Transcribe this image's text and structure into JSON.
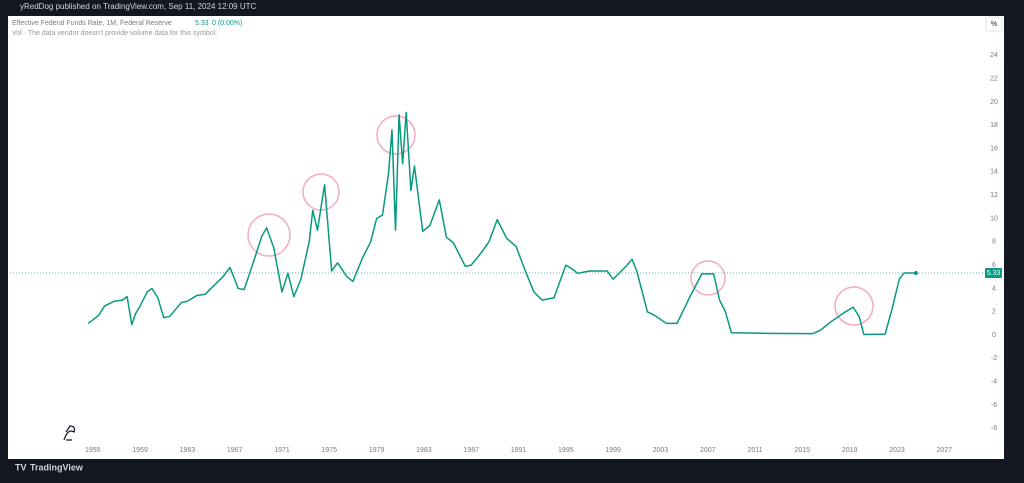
{
  "header": {
    "attribution": "yRedDog published on TradingView.com, Sep 11, 2024 12:09 UTC"
  },
  "footer": {
    "brand": "TradingView"
  },
  "chart_data": {
    "type": "line",
    "title": "Effective Federal Funds Rate, 1M, Federal Reserve",
    "last_value": 5.33,
    "change_label": "0 (0.00%)",
    "volume_note": "Vol · The data vendor doesn't provide volume data for this symbol.",
    "unit_label": "%",
    "color": "#089981",
    "grid": false,
    "x": [
      1954.6,
      1955,
      1955.5,
      1956,
      1956.8,
      1957.5,
      1957.9,
      1958.3,
      1958.6,
      1959,
      1959.6,
      1960,
      1960.5,
      1961,
      1961.5,
      1962,
      1962.5,
      1963,
      1963.8,
      1964.5,
      1965,
      1966,
      1966.6,
      1967.3,
      1967.8,
      1968.5,
      1969.3,
      1969.7,
      1970.3,
      1971,
      1971.5,
      1972,
      1972.6,
      1973.3,
      1973.6,
      1974,
      1974.6,
      1975.2,
      1975.7,
      1976.5,
      1977,
      1977.8,
      1978.5,
      1979,
      1979.5,
      1980,
      1980.3,
      1980.6,
      1980.9,
      1981.2,
      1981.5,
      1981.9,
      1982.2,
      1982.9,
      1983.5,
      1984.3,
      1984.9,
      1985.5,
      1986.5,
      1987,
      1987.8,
      1988.5,
      1989.2,
      1990,
      1990.8,
      1991.5,
      1992.3,
      1993,
      1994,
      1995,
      1995.5,
      1996,
      1997,
      1998.5,
      1999,
      2000,
      2000.6,
      2001,
      2001.9,
      2002.5,
      2003.5,
      2004.4,
      2005.5,
      2006.5,
      2007.5,
      2008,
      2008.5,
      2009,
      2012,
      2015.9,
      2016.5,
      2017.5,
      2018.5,
      2019.3,
      2019.8,
      2020.2,
      2022,
      2022.6,
      2023.2,
      2023.6,
      2024.6
    ],
    "values": [
      1.0,
      1.3,
      1.7,
      2.5,
      2.9,
      3.0,
      3.3,
      0.9,
      1.8,
      2.5,
      3.7,
      4.0,
      3.2,
      1.5,
      1.6,
      2.2,
      2.8,
      2.9,
      3.4,
      3.5,
      4.0,
      5.0,
      5.8,
      4.0,
      3.9,
      6.0,
      8.5,
      9.2,
      7.5,
      3.7,
      5.3,
      3.3,
      4.8,
      8.0,
      10.7,
      9.0,
      12.9,
      5.5,
      6.2,
      5.0,
      4.6,
      6.6,
      8.0,
      10.0,
      10.3,
      13.8,
      17.6,
      9.0,
      18.9,
      14.7,
      19.1,
      12.4,
      14.5,
      8.9,
      9.4,
      11.6,
      8.4,
      7.9,
      5.9,
      6.0,
      7.0,
      8.0,
      9.9,
      8.3,
      7.6,
      5.7,
      3.7,
      3.0,
      3.2,
      6.0,
      5.7,
      5.3,
      5.5,
      5.5,
      4.8,
      5.8,
      6.5,
      5.5,
      2.0,
      1.7,
      1.0,
      1.0,
      3.3,
      5.25,
      5.25,
      3.0,
      2.0,
      0.2,
      0.15,
      0.13,
      0.4,
      1.2,
      1.9,
      2.4,
      1.6,
      0.05,
      0.08,
      2.3,
      4.8,
      5.33,
      5.33
    ],
    "xlim": [
      1948,
      2029.6
    ],
    "xticks": [
      1955,
      1959,
      1963,
      1967,
      1971,
      1975,
      1979,
      1983,
      1987,
      1991,
      1995,
      1999,
      2003,
      2007,
      2011,
      2015,
      2019,
      2023,
      2027
    ],
    "ylim": [
      -9,
      27.2
    ],
    "yticks": [
      -8,
      -6,
      -4,
      -2,
      0,
      2,
      4,
      6,
      8,
      10,
      12,
      14,
      16,
      18,
      20,
      22,
      24
    ]
  }
}
